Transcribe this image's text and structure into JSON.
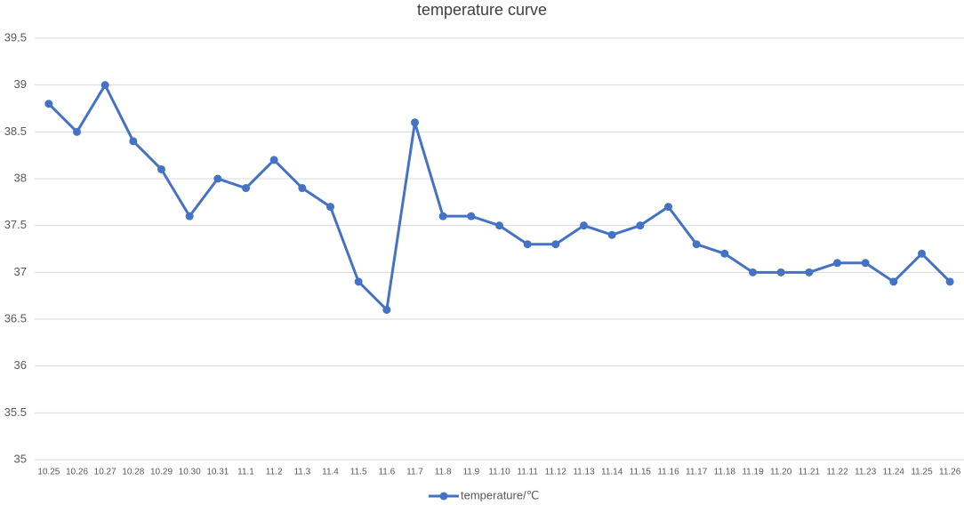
{
  "chart_data": {
    "type": "line",
    "title": "temperature curve",
    "categories": [
      "10.25",
      "10.26",
      "10.27",
      "10.28",
      "10.29",
      "10.30",
      "10.31",
      "11.1",
      "11.2",
      "11.3",
      "11.4",
      "11.5",
      "11.6",
      "11.7",
      "11.8",
      "11.9",
      "11.10",
      "11.11",
      "11.12",
      "11.13",
      "11.14",
      "11.15",
      "11.16",
      "11.17",
      "11.18",
      "11.19",
      "11.20",
      "11.21",
      "11.22",
      "11.23",
      "11.24",
      "11.25",
      "11.26"
    ],
    "series": [
      {
        "name": "temperature/℃",
        "color": "#4472c4",
        "values": [
          38.8,
          38.5,
          39,
          38.4,
          38.1,
          37.6,
          38.0,
          37.9,
          38.2,
          37.9,
          37.7,
          36.9,
          36.6,
          38.6,
          37.6,
          37.6,
          37.5,
          37.3,
          37.3,
          37.5,
          37.4,
          37.5,
          37.7,
          37.3,
          37.2,
          37.0,
          37.0,
          37.0,
          37.1,
          37.1,
          36.9,
          37.2,
          36.9
        ]
      }
    ],
    "ylim": [
      35,
      39.5
    ],
    "yticks": [
      35,
      35.5,
      36,
      36.5,
      37,
      37.5,
      38,
      38.5,
      39,
      39.5
    ],
    "grid": true,
    "legend": "bottom"
  }
}
